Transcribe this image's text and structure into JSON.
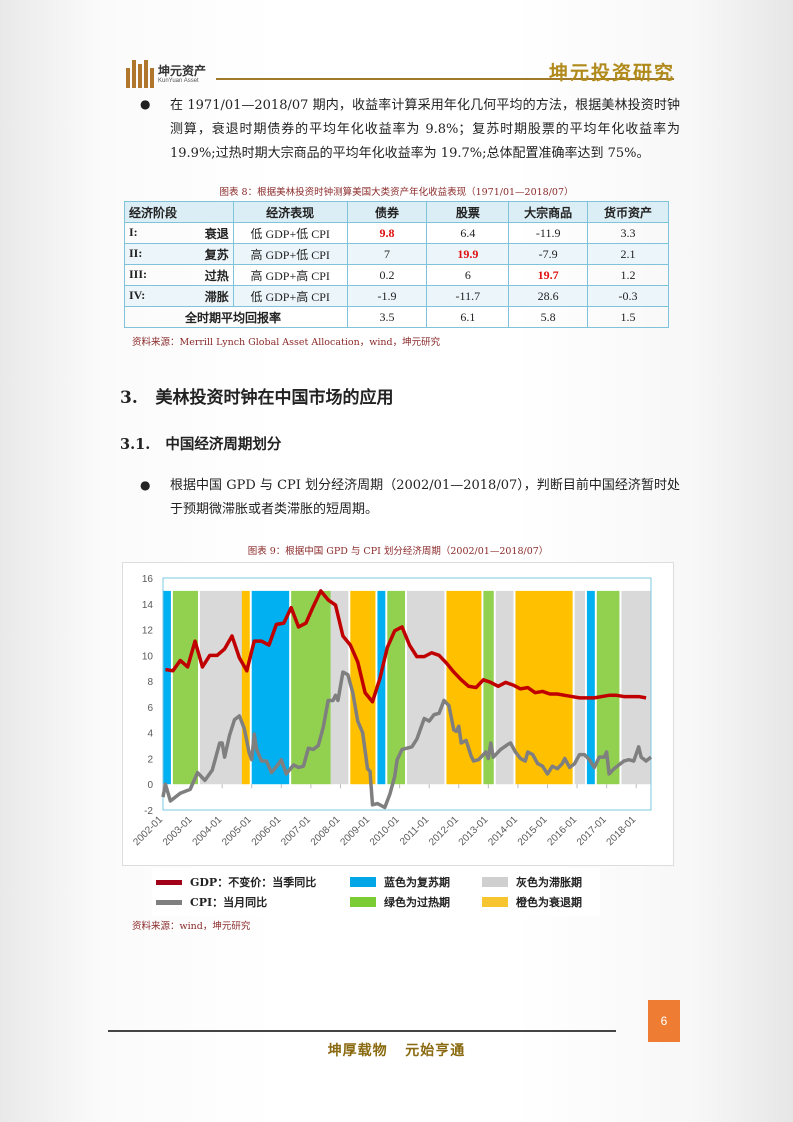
{
  "header": {
    "logo_cn": "坤元资产",
    "logo_en": "KunYuan Asset",
    "brand": "坤元投资研究"
  },
  "intro_bullet": "在 1971/01—2018/07 期内，收益率计算采用年化几何平均的方法，根据美林投资时钟测算，衰退时期债券的平均年化收益率为 9.8%；复苏时期股票的平均年化收益率为 19.9%;过热时期大宗商品的平均年化收益率为 19.7%;总体配置准确率达到 75%。",
  "table": {
    "caption": "图表 8：根据美林投资时钟测算美国大类资产年化收益表现（1971/01—2018/07）",
    "headers": [
      "经济阶段",
      "经济表现",
      "债券",
      "股票",
      "大宗商品",
      "货币资产"
    ],
    "rows": [
      {
        "num": "I:",
        "stage": "衰退",
        "perf": "低 GDP+低 CPI",
        "values": [
          "9.8",
          "6.4",
          "-11.9",
          "3.3"
        ],
        "highlight": 0
      },
      {
        "num": "II:",
        "stage": "复苏",
        "perf": "高 GDP+低 CPI",
        "values": [
          "7",
          "19.9",
          "-7.9",
          "2.1"
        ],
        "highlight": 1
      },
      {
        "num": "III:",
        "stage": "过热",
        "perf": "高 GDP+高 CPI",
        "values": [
          "0.2",
          "6",
          "19.7",
          "1.2"
        ],
        "highlight": 2
      },
      {
        "num": "IV:",
        "stage": "滞胀",
        "perf": "低 GDP+高 CPI",
        "values": [
          "-1.9",
          "-11.7",
          "28.6",
          "-0.3"
        ],
        "highlight": -1
      }
    ],
    "total": {
      "label": "全时期平均回报率",
      "values": [
        "3.5",
        "6.1",
        "5.8",
        "1.5"
      ]
    },
    "highlight_color": "#e01010",
    "source": "资料来源：Merrill Lynch Global Asset Allocation，wind，坤元研究"
  },
  "section3": "3.   美林投资时钟在中国市场的应用",
  "section31": "3.1.   中国经济周期划分",
  "bullet2": "根据中国 GPD 与 CPI 划分经济周期（2002/01—2018/07），判断目前中国经济暂时处于预期微滞胀或者类滞胀的短周期。",
  "chart_caption": "图表 9：根据中国 GPD 与 CPI 划分经济周期（2002/01—2018/07）",
  "chart_data": {
    "type": "line",
    "ylim": [
      -2,
      16
    ],
    "yticks": [
      -2,
      0,
      2,
      4,
      6,
      8,
      10,
      12,
      14,
      16
    ],
    "xlim": [
      "2002-01",
      "2018-07"
    ],
    "xticks": [
      "2002-01",
      "2003-01",
      "2004-01",
      "2005-01",
      "2006-01",
      "2007-01",
      "2008-01",
      "2009-01",
      "2010-01",
      "2011-01",
      "2012-01",
      "2013-01",
      "2014-01",
      "2015-01",
      "2016-01",
      "2017-01",
      "2018-01"
    ],
    "grid": false,
    "legend_position": "bottom",
    "band_top": 15,
    "bands": [
      [
        "2002-01",
        "2002-04",
        "recovery"
      ],
      [
        "2002-05",
        "2003-03",
        "overheat"
      ],
      [
        "2003-04",
        "2004-09",
        "stagflation"
      ],
      [
        "2004-09",
        "2004-12",
        "recession"
      ],
      [
        "2005-01",
        "2006-04",
        "recovery"
      ],
      [
        "2006-05",
        "2007-09",
        "overheat"
      ],
      [
        "2007-09",
        "2008-04",
        "stagflation"
      ],
      [
        "2008-05",
        "2009-03",
        "recession"
      ],
      [
        "2009-04",
        "2009-07",
        "recovery"
      ],
      [
        "2009-08",
        "2010-03",
        "overheat"
      ],
      [
        "2010-04",
        "2011-07",
        "stagflation"
      ],
      [
        "2011-08",
        "2012-10",
        "recession"
      ],
      [
        "2012-11",
        "2013-03",
        "overheat"
      ],
      [
        "2013-04",
        "2013-11",
        "stagflation"
      ],
      [
        "2013-12",
        "2015-11",
        "recession"
      ],
      [
        "2015-12",
        "2016-04",
        "stagflation"
      ],
      [
        "2016-05",
        "2016-08",
        "recovery"
      ],
      [
        "2016-09",
        "2017-06",
        "overheat"
      ],
      [
        "2017-07",
        "2018-07",
        "stagflation"
      ]
    ],
    "band_colors": {
      "recovery": "#00b0f0",
      "overheat": "#92d050",
      "stagflation": "#d9d9d9",
      "recession": "#ffc000"
    },
    "series": [
      {
        "name": "GDP：不变价：当季同比",
        "color": "#c00000",
        "start": "2002-02",
        "step_months": 3,
        "values": [
          8.9,
          8.8,
          9.6,
          9.1,
          11.1,
          9.1,
          10.0,
          10.0,
          10.5,
          11.5,
          9.8,
          8.8,
          11.1,
          11.1,
          10.8,
          12.4,
          12.5,
          13.7,
          12.2,
          12.5,
          13.8,
          15.0,
          14.3,
          13.9,
          11.5,
          10.8,
          9.5,
          7.1,
          6.4,
          8.2,
          10.6,
          11.9,
          12.2,
          10.8,
          9.9,
          9.9,
          10.2,
          10.0,
          9.4,
          8.7,
          8.1,
          7.6,
          7.5,
          8.1,
          7.9,
          7.6,
          7.9,
          7.7,
          7.4,
          7.5,
          7.1,
          7.2,
          7.0,
          7.0,
          6.9,
          6.8,
          6.7,
          6.7,
          6.7,
          6.8,
          6.9,
          6.9,
          6.8,
          6.8,
          6.8,
          6.7
        ]
      },
      {
        "name": "CPI：当月同比",
        "color": "#7f7f7f",
        "points": [
          [
            "2002-01",
            -1.0
          ],
          [
            "2002-02",
            0.0
          ],
          [
            "2002-04",
            -1.3
          ],
          [
            "2002-08",
            -0.7
          ],
          [
            "2002-12",
            -0.4
          ],
          [
            "2003-03",
            0.9
          ],
          [
            "2003-06",
            0.3
          ],
          [
            "2003-09",
            1.1
          ],
          [
            "2003-12",
            3.2
          ],
          [
            "2004-01",
            3.2
          ],
          [
            "2004-02",
            2.1
          ],
          [
            "2004-04",
            3.8
          ],
          [
            "2004-06",
            5.0
          ],
          [
            "2004-08",
            5.3
          ],
          [
            "2004-10",
            4.3
          ],
          [
            "2004-12",
            2.4
          ],
          [
            "2005-01",
            1.9
          ],
          [
            "2005-02",
            3.9
          ],
          [
            "2005-03",
            2.7
          ],
          [
            "2005-05",
            1.8
          ],
          [
            "2005-07",
            1.8
          ],
          [
            "2005-09",
            0.9
          ],
          [
            "2005-12",
            1.6
          ],
          [
            "2006-01",
            1.9
          ],
          [
            "2006-03",
            0.8
          ],
          [
            "2006-06",
            1.5
          ],
          [
            "2006-08",
            1.3
          ],
          [
            "2006-10",
            1.4
          ],
          [
            "2006-12",
            2.8
          ],
          [
            "2007-02",
            2.7
          ],
          [
            "2007-04",
            3.0
          ],
          [
            "2007-06",
            4.4
          ],
          [
            "2007-08",
            6.5
          ],
          [
            "2007-10",
            6.5
          ],
          [
            "2007-11",
            6.9
          ],
          [
            "2007-12",
            6.5
          ],
          [
            "2008-02",
            8.7
          ],
          [
            "2008-04",
            8.5
          ],
          [
            "2008-06",
            7.1
          ],
          [
            "2008-08",
            4.9
          ],
          [
            "2008-10",
            4.0
          ],
          [
            "2008-12",
            1.2
          ],
          [
            "2009-01",
            1.0
          ],
          [
            "2009-02",
            -1.6
          ],
          [
            "2009-04",
            -1.5
          ],
          [
            "2009-07",
            -1.8
          ],
          [
            "2009-09",
            -0.8
          ],
          [
            "2009-11",
            0.6
          ],
          [
            "2009-12",
            1.9
          ],
          [
            "2010-02",
            2.7
          ],
          [
            "2010-04",
            2.8
          ],
          [
            "2010-06",
            2.9
          ],
          [
            "2010-08",
            3.5
          ],
          [
            "2010-11",
            5.1
          ],
          [
            "2011-01",
            4.9
          ],
          [
            "2011-03",
            5.4
          ],
          [
            "2011-05",
            5.5
          ],
          [
            "2011-07",
            6.5
          ],
          [
            "2011-09",
            6.1
          ],
          [
            "2011-11",
            4.2
          ],
          [
            "2011-12",
            4.1
          ],
          [
            "2012-01",
            4.5
          ],
          [
            "2012-02",
            3.2
          ],
          [
            "2012-04",
            3.4
          ],
          [
            "2012-06",
            2.2
          ],
          [
            "2012-07",
            1.8
          ],
          [
            "2012-09",
            1.9
          ],
          [
            "2012-12",
            2.5
          ],
          [
            "2013-01",
            2.0
          ],
          [
            "2013-02",
            3.2
          ],
          [
            "2013-03",
            2.1
          ],
          [
            "2013-06",
            2.7
          ],
          [
            "2013-09",
            3.1
          ],
          [
            "2013-10",
            3.2
          ],
          [
            "2013-12",
            2.5
          ],
          [
            "2014-02",
            2.0
          ],
          [
            "2014-04",
            1.8
          ],
          [
            "2014-05",
            2.5
          ],
          [
            "2014-07",
            2.3
          ],
          [
            "2014-09",
            1.6
          ],
          [
            "2014-11",
            1.4
          ],
          [
            "2015-01",
            0.8
          ],
          [
            "2015-03",
            1.4
          ],
          [
            "2015-05",
            1.2
          ],
          [
            "2015-07",
            1.6
          ],
          [
            "2015-08",
            2.0
          ],
          [
            "2015-10",
            1.3
          ],
          [
            "2015-12",
            1.6
          ],
          [
            "2016-02",
            2.3
          ],
          [
            "2016-04",
            2.3
          ],
          [
            "2016-06",
            1.9
          ],
          [
            "2016-08",
            1.3
          ],
          [
            "2016-10",
            2.1
          ],
          [
            "2016-12",
            2.1
          ],
          [
            "2017-01",
            2.5
          ],
          [
            "2017-02",
            0.8
          ],
          [
            "2017-04",
            1.2
          ],
          [
            "2017-06",
            1.5
          ],
          [
            "2017-08",
            1.8
          ],
          [
            "2017-10",
            1.9
          ],
          [
            "2017-12",
            1.8
          ],
          [
            "2018-02",
            2.9
          ],
          [
            "2018-03",
            2.1
          ],
          [
            "2018-05",
            1.8
          ],
          [
            "2018-07",
            2.1
          ]
        ]
      }
    ],
    "legend": {
      "gdp": "GDP：不变价：当季同比",
      "cpi": "CPI：当月同比",
      "recovery": "蓝色为复苏期",
      "overheat": "绿色为过热期",
      "stagflation": "灰色为滞胀期",
      "recession": "橙色为衰退期"
    }
  },
  "chart_source": "资料来源：wind，坤元研究",
  "footer": {
    "page": "6",
    "motto": "坤厚载物   元始亨通"
  }
}
